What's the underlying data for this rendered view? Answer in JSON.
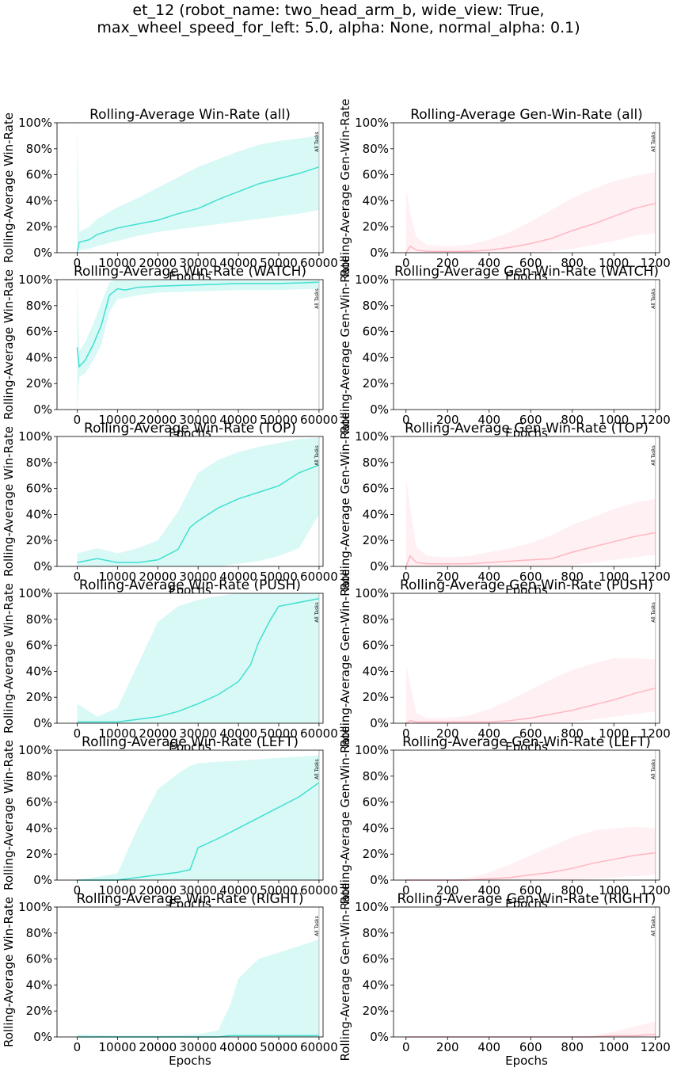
{
  "figure": {
    "suptitle_lines": [
      "et_12 (robot_name: two_head_arm_b, wide_view: True,",
      "max_wheel_speed_for_left: 5.0, alpha: None, normal_alpha: 0.1)"
    ],
    "vline_label": "All Tasks"
  },
  "chart_data": [
    {
      "type": "line",
      "title": "Rolling-Average Win-Rate (all)",
      "xlabel": "Epochs",
      "ylabel": "Rolling-Average Win-Rate",
      "xlim": [
        -5000,
        61000
      ],
      "ylim": [
        0,
        100
      ],
      "xticks": [
        0,
        10000,
        20000,
        30000,
        40000,
        50000,
        60000
      ],
      "yticks": [
        0,
        20,
        40,
        60,
        80,
        100
      ],
      "ytick_labels": [
        "0%",
        "20%",
        "40%",
        "60%",
        "80%",
        "100%"
      ],
      "vline_x": 60000,
      "series_color": "#40e0d0",
      "series": [
        {
          "x": [
            0,
            500,
            3000,
            5000,
            10000,
            15000,
            20000,
            25000,
            30000,
            35000,
            40000,
            45000,
            50000,
            55000,
            60000
          ],
          "y": [
            0,
            8,
            10,
            14,
            19,
            22,
            25,
            30,
            34,
            41,
            47,
            53,
            57,
            61,
            66
          ],
          "lower": [
            0,
            2,
            3,
            5,
            9,
            13,
            16,
            18,
            20,
            22,
            24,
            26,
            28,
            30,
            33
          ],
          "upper": [
            100,
            16,
            20,
            26,
            35,
            42,
            50,
            58,
            66,
            72,
            78,
            83,
            86,
            88,
            90
          ]
        }
      ]
    },
    {
      "type": "line",
      "title": "Rolling-Average Gen-Win-Rate (all)",
      "xlabel": "Epochs",
      "ylabel": "Rolling-Average Gen-Win-Rate",
      "xlim": [
        -60,
        1220
      ],
      "ylim": [
        0,
        100
      ],
      "xticks": [
        0,
        200,
        400,
        600,
        800,
        1000,
        1200
      ],
      "yticks": [
        0,
        20,
        40,
        60,
        80,
        100
      ],
      "ytick_labels": [
        "0%",
        "20%",
        "40%",
        "60%",
        "80%",
        "100%"
      ],
      "vline_x": 1200,
      "series_color": "#ffb6c1",
      "series": [
        {
          "x": [
            0,
            20,
            50,
            100,
            200,
            300,
            400,
            500,
            600,
            700,
            800,
            900,
            1000,
            1100,
            1200
          ],
          "y": [
            0,
            5,
            2,
            1,
            1,
            1,
            2,
            4,
            7,
            11,
            17,
            22,
            28,
            34,
            38
          ],
          "lower": [
            0,
            0,
            0,
            0,
            0,
            0,
            0,
            0,
            0,
            1,
            3,
            6,
            9,
            13,
            15
          ],
          "upper": [
            50,
            30,
            12,
            6,
            5,
            6,
            10,
            16,
            24,
            33,
            42,
            49,
            55,
            59,
            62
          ]
        }
      ]
    },
    {
      "type": "line",
      "title": "Rolling-Average Win-Rate (WATCH)",
      "xlabel": "Epochs",
      "ylabel": "Rolling-Average Win-Rate",
      "xlim": [
        -5000,
        61000
      ],
      "ylim": [
        0,
        100
      ],
      "xticks": [
        0,
        10000,
        20000,
        30000,
        40000,
        50000,
        60000
      ],
      "yticks": [
        0,
        20,
        40,
        60,
        80,
        100
      ],
      "ytick_labels": [
        "0%",
        "20%",
        "40%",
        "60%",
        "80%",
        "100%"
      ],
      "vline_x": 60000,
      "series_color": "#40e0d0",
      "series": [
        {
          "x": [
            0,
            500,
            2000,
            4000,
            6000,
            8000,
            10000,
            12000,
            15000,
            20000,
            30000,
            40000,
            50000,
            60000
          ],
          "y": [
            48,
            33,
            38,
            50,
            65,
            88,
            93,
            92,
            94,
            95,
            96,
            97,
            97,
            98
          ],
          "lower": [
            0,
            25,
            28,
            38,
            50,
            75,
            85,
            86,
            88,
            90,
            91,
            92,
            92,
            93
          ],
          "upper": [
            100,
            45,
            52,
            66,
            82,
            98,
            100,
            100,
            100,
            100,
            100,
            100,
            100,
            100
          ]
        }
      ]
    },
    {
      "type": "line",
      "title": "Rolling-Average Gen-Win-Rate (WATCH)",
      "xlabel": "Epochs",
      "ylabel": "Rolling-Average Gen-Win-Rate",
      "xlim": [
        -60,
        1220
      ],
      "ylim": [
        0,
        100
      ],
      "xticks": [
        0,
        200,
        400,
        600,
        800,
        1000,
        1200
      ],
      "yticks": [
        0,
        20,
        40,
        60,
        80,
        100
      ],
      "ytick_labels": [
        "0%",
        "20%",
        "40%",
        "60%",
        "80%",
        "100%"
      ],
      "vline_x": 1200,
      "series_color": "#ffb6c1",
      "series": []
    },
    {
      "type": "line",
      "title": "Rolling-Average Win-Rate (TOP)",
      "xlabel": "Epochs",
      "ylabel": "Rolling-Average Win-Rate",
      "xlim": [
        -5000,
        61000
      ],
      "ylim": [
        0,
        100
      ],
      "xticks": [
        0,
        10000,
        20000,
        30000,
        40000,
        50000,
        60000
      ],
      "yticks": [
        0,
        20,
        40,
        60,
        80,
        100
      ],
      "ytick_labels": [
        "0%",
        "20%",
        "40%",
        "60%",
        "80%",
        "100%"
      ],
      "vline_x": 60000,
      "series_color": "#40e0d0",
      "series": [
        {
          "x": [
            0,
            5000,
            10000,
            15000,
            20000,
            25000,
            28000,
            30000,
            35000,
            40000,
            45000,
            50000,
            55000,
            60000
          ],
          "y": [
            3,
            6,
            3,
            3,
            5,
            13,
            30,
            35,
            45,
            52,
            57,
            62,
            72,
            78
          ],
          "lower": [
            0,
            0,
            0,
            0,
            0,
            0,
            0,
            0,
            0,
            2,
            4,
            8,
            14,
            40
          ],
          "upper": [
            10,
            14,
            10,
            14,
            20,
            42,
            60,
            72,
            82,
            88,
            92,
            95,
            98,
            99
          ]
        }
      ]
    },
    {
      "type": "line",
      "title": "Rolling-Average Gen-Win-Rate (TOP)",
      "xlabel": "Epochs",
      "ylabel": "Rolling-Average Gen-Win-Rate",
      "xlim": [
        -60,
        1220
      ],
      "ylim": [
        0,
        100
      ],
      "xticks": [
        0,
        200,
        400,
        600,
        800,
        1000,
        1200
      ],
      "yticks": [
        0,
        20,
        40,
        60,
        80,
        100
      ],
      "ytick_labels": [
        "0%",
        "20%",
        "40%",
        "60%",
        "80%",
        "100%"
      ],
      "vline_x": 1200,
      "series_color": "#ffb6c1",
      "series": [
        {
          "x": [
            0,
            20,
            50,
            100,
            200,
            300,
            400,
            500,
            600,
            700,
            800,
            900,
            1000,
            1100,
            1200
          ],
          "y": [
            0,
            8,
            3,
            2,
            2,
            2,
            3,
            4,
            5,
            6,
            11,
            15,
            19,
            23,
            26
          ],
          "lower": [
            0,
            0,
            0,
            0,
            0,
            0,
            0,
            0,
            0,
            0,
            1,
            3,
            5,
            7,
            9
          ],
          "upper": [
            70,
            45,
            15,
            8,
            7,
            8,
            11,
            14,
            18,
            24,
            32,
            38,
            44,
            49,
            52
          ]
        }
      ]
    },
    {
      "type": "line",
      "title": "Rolling-Average Win-Rate (PUSH)",
      "xlabel": "Epochs",
      "ylabel": "Rolling-Average Win-Rate",
      "xlim": [
        -5000,
        61000
      ],
      "ylim": [
        0,
        100
      ],
      "xticks": [
        0,
        10000,
        20000,
        30000,
        40000,
        50000,
        60000
      ],
      "yticks": [
        0,
        20,
        40,
        60,
        80,
        100
      ],
      "ytick_labels": [
        "0%",
        "20%",
        "40%",
        "60%",
        "80%",
        "100%"
      ],
      "vline_x": 60000,
      "series_color": "#40e0d0",
      "series": [
        {
          "x": [
            0,
            5000,
            10000,
            15000,
            20000,
            25000,
            30000,
            35000,
            40000,
            43000,
            45000,
            48000,
            50000,
            55000,
            60000
          ],
          "y": [
            1,
            1,
            1,
            3,
            5,
            9,
            15,
            22,
            32,
            45,
            62,
            80,
            90,
            93,
            96
          ],
          "lower": [
            0,
            0,
            0,
            0,
            0,
            0,
            0,
            0,
            0,
            0,
            0,
            0,
            0,
            0,
            0
          ],
          "upper": [
            15,
            5,
            12,
            45,
            78,
            90,
            95,
            98,
            100,
            100,
            100,
            100,
            100,
            100,
            100
          ]
        }
      ]
    },
    {
      "type": "line",
      "title": "Rolling-Average Gen-Win-Rate (PUSH)",
      "xlabel": "Epochs",
      "ylabel": "Rolling-Average Gen-Win-Rate",
      "xlim": [
        -60,
        1220
      ],
      "ylim": [
        0,
        100
      ],
      "xticks": [
        0,
        200,
        400,
        600,
        800,
        1000,
        1200
      ],
      "yticks": [
        0,
        20,
        40,
        60,
        80,
        100
      ],
      "ytick_labels": [
        "0%",
        "20%",
        "40%",
        "60%",
        "80%",
        "100%"
      ],
      "vline_x": 1200,
      "series_color": "#ffb6c1",
      "series": [
        {
          "x": [
            0,
            20,
            50,
            100,
            200,
            300,
            400,
            500,
            600,
            700,
            800,
            900,
            1000,
            1100,
            1200
          ],
          "y": [
            0,
            2,
            1,
            1,
            1,
            1,
            1,
            2,
            4,
            7,
            10,
            14,
            18,
            23,
            27
          ],
          "lower": [
            0,
            0,
            0,
            0,
            0,
            0,
            0,
            0,
            0,
            0,
            1,
            3,
            5,
            7,
            9
          ],
          "upper": [
            45,
            30,
            8,
            4,
            4,
            6,
            11,
            18,
            26,
            34,
            41,
            46,
            50,
            50,
            49
          ]
        }
      ]
    },
    {
      "type": "line",
      "title": "Rolling-Average Win-Rate (LEFT)",
      "xlabel": "Epochs",
      "ylabel": "Rolling-Average Win-Rate",
      "xlim": [
        -5000,
        61000
      ],
      "ylim": [
        0,
        100
      ],
      "xticks": [
        0,
        10000,
        20000,
        30000,
        40000,
        50000,
        60000
      ],
      "yticks": [
        0,
        20,
        40,
        60,
        80,
        100
      ],
      "ytick_labels": [
        "0%",
        "20%",
        "40%",
        "60%",
        "80%",
        "100%"
      ],
      "vline_x": 60000,
      "series_color": "#40e0d0",
      "series": [
        {
          "x": [
            0,
            10000,
            15000,
            20000,
            25000,
            28000,
            30000,
            35000,
            40000,
            45000,
            50000,
            55000,
            60000
          ],
          "y": [
            0,
            0,
            2,
            4,
            6,
            8,
            25,
            32,
            40,
            48,
            56,
            64,
            75
          ],
          "lower": [
            0,
            0,
            0,
            0,
            0,
            0,
            0,
            0,
            0,
            0,
            0,
            0,
            0
          ],
          "upper": [
            0,
            5,
            40,
            70,
            82,
            88,
            90,
            91,
            92,
            93,
            94,
            95,
            96
          ]
        }
      ]
    },
    {
      "type": "line",
      "title": "Rolling-Average Gen-Win-Rate (LEFT)",
      "xlabel": "Epochs",
      "ylabel": "Rolling-Average Gen-Win-Rate",
      "xlim": [
        -60,
        1220
      ],
      "ylim": [
        0,
        100
      ],
      "xticks": [
        0,
        200,
        400,
        600,
        800,
        1000,
        1200
      ],
      "yticks": [
        0,
        20,
        40,
        60,
        80,
        100
      ],
      "ytick_labels": [
        "0%",
        "20%",
        "40%",
        "60%",
        "80%",
        "100%"
      ],
      "vline_x": 1200,
      "series_color": "#ffb6c1",
      "series": [
        {
          "x": [
            0,
            100,
            200,
            300,
            400,
            500,
            600,
            700,
            800,
            900,
            1000,
            1100,
            1200
          ],
          "y": [
            0,
            0,
            0,
            0,
            1,
            2,
            4,
            6,
            9,
            13,
            16,
            19,
            21
          ],
          "lower": [
            0,
            0,
            0,
            0,
            0,
            0,
            0,
            0,
            0,
            1,
            2,
            3,
            4
          ],
          "upper": [
            0,
            0,
            0,
            2,
            6,
            12,
            19,
            26,
            33,
            38,
            40,
            41,
            40
          ]
        }
      ]
    },
    {
      "type": "line",
      "title": "Rolling-Average Win-Rate (RIGHT)",
      "xlabel": "Epochs",
      "ylabel": "Rolling-Average Win-Rate",
      "xlim": [
        -5000,
        61000
      ],
      "ylim": [
        0,
        100
      ],
      "xticks": [
        0,
        10000,
        20000,
        30000,
        40000,
        50000,
        60000
      ],
      "yticks": [
        0,
        20,
        40,
        60,
        80,
        100
      ],
      "ytick_labels": [
        "0%",
        "20%",
        "40%",
        "60%",
        "80%",
        "100%"
      ],
      "vline_x": 60000,
      "series_color": "#40e0d0",
      "series": [
        {
          "x": [
            0,
            10000,
            20000,
            30000,
            35000,
            38000,
            40000,
            45000,
            50000,
            55000,
            60000
          ],
          "y": [
            0,
            0,
            0,
            0,
            0,
            1,
            1,
            1,
            1,
            1,
            1
          ],
          "lower": [
            0,
            0,
            0,
            0,
            0,
            0,
            0,
            0,
            0,
            0,
            0
          ],
          "upper": [
            2,
            1,
            1,
            2,
            5,
            25,
            45,
            60,
            65,
            70,
            75
          ]
        }
      ]
    },
    {
      "type": "line",
      "title": "Rolling-Average Gen-Win-Rate (RIGHT)",
      "xlabel": "Epochs",
      "ylabel": "Rolling-Average Gen-Win-Rate",
      "xlim": [
        -60,
        1220
      ],
      "ylim": [
        0,
        100
      ],
      "xticks": [
        0,
        200,
        400,
        600,
        800,
        1000,
        1200
      ],
      "yticks": [
        0,
        20,
        40,
        60,
        80,
        100
      ],
      "ytick_labels": [
        "0%",
        "20%",
        "40%",
        "60%",
        "80%",
        "100%"
      ],
      "vline_x": 1200,
      "series_color": "#ffb6c1",
      "series": [
        {
          "x": [
            0,
            400,
            800,
            900,
            1000,
            1100,
            1200
          ],
          "y": [
            0,
            0,
            0,
            0,
            1,
            1,
            2
          ],
          "lower": [
            0,
            0,
            0,
            0,
            0,
            0,
            0
          ],
          "upper": [
            0,
            0,
            0,
            1,
            4,
            8,
            12
          ]
        }
      ]
    }
  ]
}
